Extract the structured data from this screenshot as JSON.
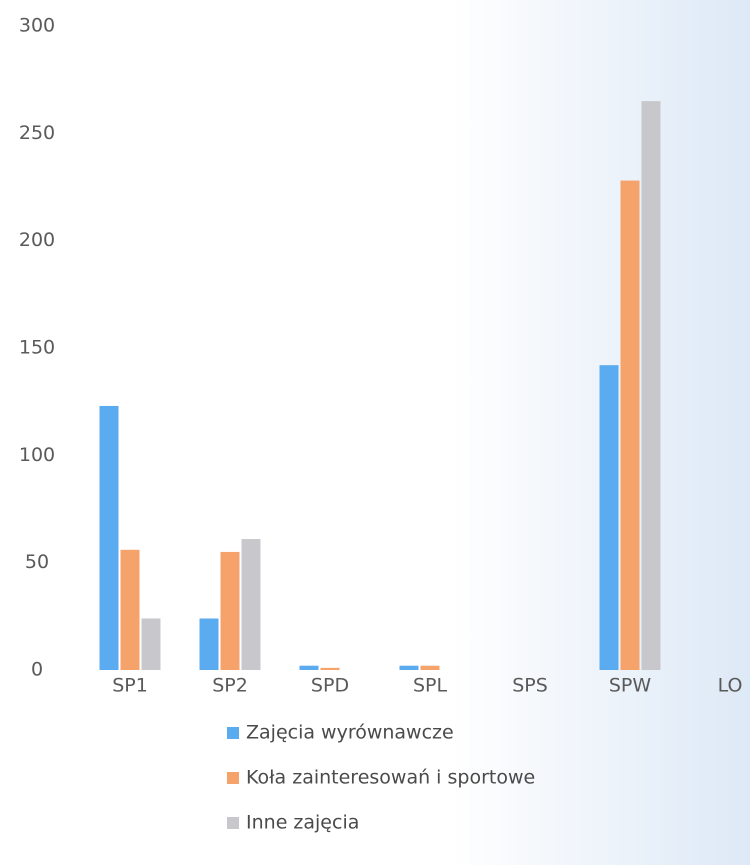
{
  "chart_data": {
    "type": "bar",
    "categories": [
      "SP1",
      "SP2",
      "SPD",
      "SPL",
      "SPS",
      "SPW",
      "LO"
    ],
    "series": [
      {
        "name": "Zajęcia wyrównawcze",
        "color": "#5aabf0",
        "values": [
          123,
          24,
          2,
          2,
          0,
          142,
          0
        ]
      },
      {
        "name": "Koła zainteresowań i sportowe",
        "color": "#f5a36b",
        "values": [
          56,
          55,
          1,
          2,
          0,
          228,
          0
        ]
      },
      {
        "name": "Inne zajęcia",
        "color": "#c8c8cc",
        "values": [
          24,
          61,
          0,
          0,
          0,
          265,
          0
        ]
      }
    ],
    "ylim": [
      0,
      300
    ],
    "yticks": [
      0,
      50,
      100,
      150,
      200,
      250,
      300
    ],
    "grid": false,
    "legend": "bottom"
  }
}
